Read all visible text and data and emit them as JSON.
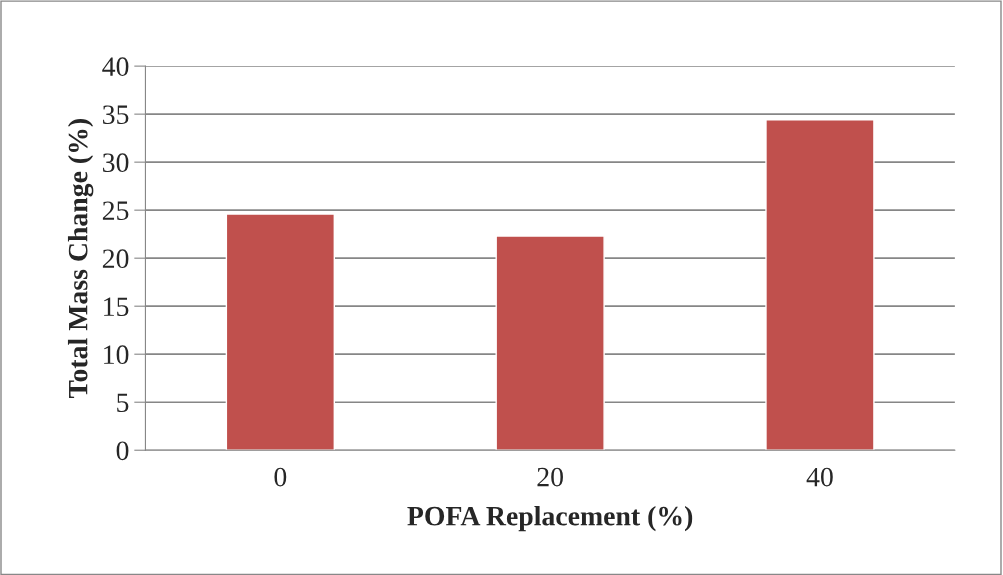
{
  "chart_data": {
    "type": "bar",
    "xlabel": "POFA Replacement (%)",
    "ylabel": "Total Mass Change (%)",
    "categories": [
      "0",
      "20",
      "40"
    ],
    "series": [
      {
        "color": "#c0504d",
        "values": [
          24.6,
          22.3,
          34.4
        ]
      }
    ],
    "ylim": [
      0,
      40
    ],
    "yticks": [
      0,
      5,
      10,
      15,
      20,
      25,
      30,
      35,
      40
    ],
    "grid": "y"
  }
}
